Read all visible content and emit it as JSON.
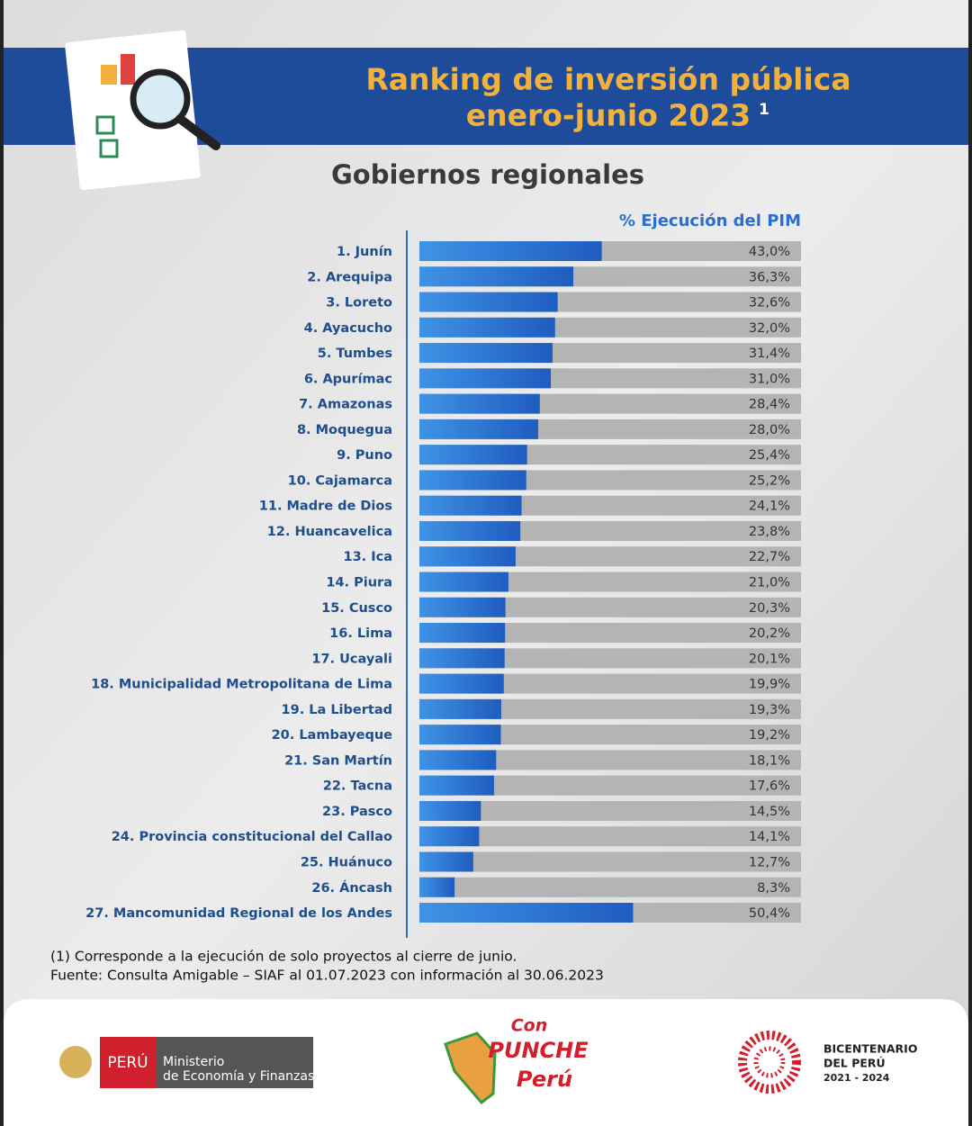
{
  "chart_data": {
    "type": "hbar",
    "title_lines": [
      "Ranking de inversión pública",
      "enero-junio 2023"
    ],
    "title_note": "1",
    "subtitle": "Gobiernos regionales",
    "value_header": "% Ejecución del PIM",
    "categories": [
      "1. Junín",
      "2. Arequipa",
      "3. Loreto",
      "4. Ayacucho",
      "5. Tumbes",
      "6. Apurímac",
      "7. Amazonas",
      "8. Moquegua",
      "9. Puno",
      "10. Cajamarca",
      "11. Madre de Dios",
      "12. Huancavelica",
      "13. Ica",
      "14. Piura",
      "15. Cusco",
      "16. Lima",
      "17. Ucayali",
      "18. Municipalidad Metropolitana de Lima",
      "19. La Libertad",
      "20. Lambayeque",
      "21. San Martín",
      "22. Tacna",
      "23. Pasco",
      "24. Provincia constitucional del Callao",
      "25. Huánuco",
      "26. Áncash",
      "27. Mancomunidad Regional de los Andes"
    ],
    "values": [
      43.0,
      36.3,
      32.6,
      32.0,
      31.4,
      31.0,
      28.4,
      28.0,
      25.4,
      25.2,
      24.1,
      23.8,
      22.7,
      21.0,
      20.3,
      20.2,
      20.1,
      19.9,
      19.3,
      19.2,
      18.1,
      17.6,
      14.5,
      14.1,
      12.7,
      8.3,
      50.4
    ],
    "value_labels": [
      "43,0%",
      "36,3%",
      "32,6%",
      "32,0%",
      "31,4%",
      "31,0%",
      "28,4%",
      "28,0%",
      "25,4%",
      "25,2%",
      "24,1%",
      "23,8%",
      "22,7%",
      "21,0%",
      "20,3%",
      "20,2%",
      "20,1%",
      "19,9%",
      "19,3%",
      "19,2%",
      "18,1%",
      "17,6%",
      "14,5%",
      "14,1%",
      "12,7%",
      "8,3%",
      "50,4%"
    ],
    "color": "#2a6fd0",
    "xlim": [
      0,
      90
    ],
    "footnotes": [
      "(1) Corresponde a la ejecución de solo proyectos al cierre de junio.",
      "Fuente: Consulta Amigable – SIAF al 01.07.2023 con información al 30.06.2023"
    ]
  },
  "logos": {
    "peru": "PERÚ",
    "ministry": [
      "Ministerio",
      "de Economía y Finanzas"
    ],
    "punche": [
      "Con",
      "PUNCHE",
      "Perú"
    ],
    "bicentenario": [
      "BICENTENARIO",
      "DEL PERÚ",
      "2021 - 2024"
    ]
  }
}
